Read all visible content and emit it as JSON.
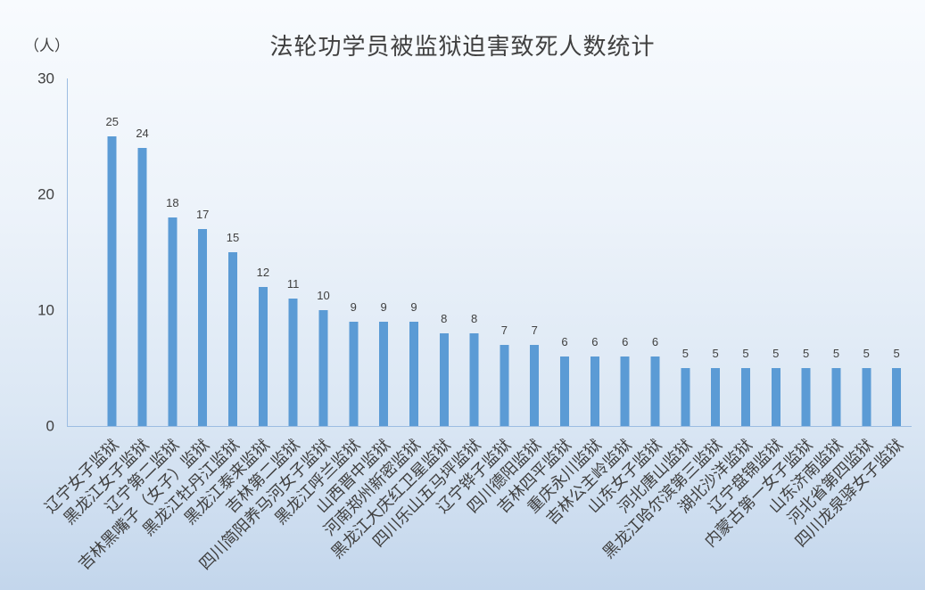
{
  "chart_data": {
    "type": "bar",
    "title": "法轮功学员被监狱迫害致死人数统计",
    "ylabel": "（人）",
    "ylim": [
      0,
      30
    ],
    "yticks": [
      0,
      10,
      20,
      30
    ],
    "grid": false,
    "legend": "none",
    "data_labels": true,
    "bar_color": "#5B9BD5",
    "categories": [
      "辽宁女子监狱",
      "黑龙江女子监狱",
      "辽宁第二监狱",
      "吉林黑嘴子（女子）监狱",
      "黑龙江牡丹江监狱",
      "黑龙江泰来监狱",
      "吉林第二监狱",
      "四川简阳养马河女子监狱",
      "黑龙江呼兰监狱",
      "山西晋中监狱",
      "河南郑州新密监狱",
      "黑龙江大庆红卫星监狱",
      "四川乐山五马坪监狱",
      "辽宁铧子监狱",
      "四川德阳监狱",
      "吉林四平监狱",
      "重庆永川监狱",
      "吉林公主岭监狱",
      "山东女子监狱",
      "河北唐山监狱",
      "黑龙江哈尔滨第三监狱",
      "湖北沙洋监狱",
      "辽宁盘锦监狱",
      "内蒙古第一女子监狱",
      "山东济南监狱",
      "河北省第四监狱",
      "四川龙泉驿女子监狱"
    ],
    "values": [
      25,
      24,
      18,
      17,
      15,
      12,
      11,
      10,
      9,
      9,
      9,
      8,
      8,
      7,
      7,
      6,
      6,
      6,
      6,
      5,
      5,
      5,
      5,
      5,
      5,
      5,
      5
    ]
  }
}
